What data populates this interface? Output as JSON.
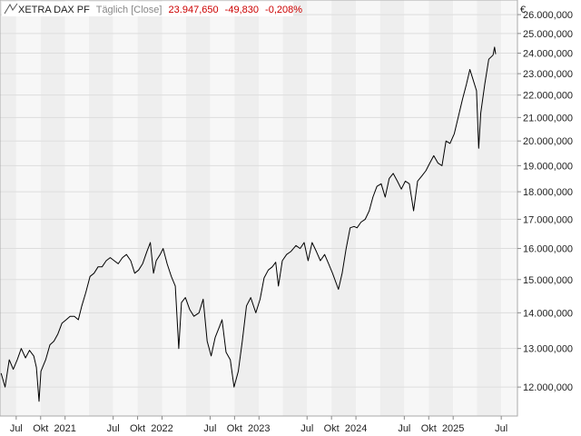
{
  "header": {
    "instrument": "XETRA DAX PF",
    "interval": "Täglich [Close]",
    "last": "23.947,650",
    "change": "-49,830",
    "change_pct": "-0,208%"
  },
  "colors": {
    "line": "#000000",
    "negative": "#cc0000",
    "muted": "#888888",
    "band_light": "#f7f7f7",
    "band_dark": "#eeeeee",
    "grid": "#dddddd"
  },
  "chart_data": {
    "type": "line",
    "title": "XETRA DAX PF",
    "currency_label": "€",
    "y_log_scale": true,
    "ylim": [
      11300,
      26800
    ],
    "y_ticks": [
      12000,
      13000,
      14000,
      15000,
      16000,
      17000,
      18000,
      19000,
      20000,
      21000,
      22000,
      23000,
      24000,
      25000,
      26000
    ],
    "y_tick_labels": [
      "12.000,000",
      "13.000,000",
      "14.000,000",
      "15.000,000",
      "16.000,000",
      "17.000,000",
      "18.000,000",
      "19.000,000",
      "20.000,000",
      "21.000,000",
      "22.000,000",
      "23.000,000",
      "24.000,000",
      "25.000,000",
      "26.000,000"
    ],
    "x_range": [
      "2020-05-01",
      "2025-08-31"
    ],
    "x_ticks": [
      {
        "date": "2020-07-01",
        "label": "Jul"
      },
      {
        "date": "2020-10-01",
        "label": "Okt"
      },
      {
        "date": "2021-01-01",
        "label": "2021"
      },
      {
        "date": "2021-07-01",
        "label": "Jul"
      },
      {
        "date": "2021-10-01",
        "label": "Okt"
      },
      {
        "date": "2022-01-01",
        "label": "2022"
      },
      {
        "date": "2022-07-01",
        "label": "Jul"
      },
      {
        "date": "2022-10-01",
        "label": "Okt"
      },
      {
        "date": "2023-01-01",
        "label": "2023"
      },
      {
        "date": "2023-07-01",
        "label": "Jul"
      },
      {
        "date": "2023-10-01",
        "label": "Okt"
      },
      {
        "date": "2024-01-01",
        "label": "2024"
      },
      {
        "date": "2024-07-01",
        "label": "Jul"
      },
      {
        "date": "2024-10-01",
        "label": "Okt"
      },
      {
        "date": "2025-01-01",
        "label": "2025"
      },
      {
        "date": "2025-07-01",
        "label": "Jul"
      }
    ],
    "series": [
      {
        "name": "XETRA DAX PF",
        "points": [
          [
            "2020-05-05",
            12350
          ],
          [
            "2020-05-20",
            12000
          ],
          [
            "2020-06-05",
            12700
          ],
          [
            "2020-06-20",
            12450
          ],
          [
            "2020-07-05",
            12700
          ],
          [
            "2020-07-20",
            13000
          ],
          [
            "2020-08-05",
            12750
          ],
          [
            "2020-08-20",
            12950
          ],
          [
            "2020-09-05",
            12800
          ],
          [
            "2020-09-15",
            12500
          ],
          [
            "2020-09-25",
            11650
          ],
          [
            "2020-10-02",
            12400
          ],
          [
            "2020-10-20",
            12700
          ],
          [
            "2020-11-05",
            13100
          ],
          [
            "2020-11-20",
            13200
          ],
          [
            "2020-12-05",
            13400
          ],
          [
            "2020-12-20",
            13700
          ],
          [
            "2021-01-05",
            13800
          ],
          [
            "2021-01-20",
            13900
          ],
          [
            "2021-02-05",
            13900
          ],
          [
            "2021-02-20",
            13800
          ],
          [
            "2021-03-05",
            14200
          ],
          [
            "2021-03-20",
            14600
          ],
          [
            "2021-04-05",
            15100
          ],
          [
            "2021-04-20",
            15200
          ],
          [
            "2021-05-05",
            15400
          ],
          [
            "2021-05-20",
            15400
          ],
          [
            "2021-06-05",
            15600
          ],
          [
            "2021-06-20",
            15700
          ],
          [
            "2021-07-05",
            15600
          ],
          [
            "2021-07-20",
            15500
          ],
          [
            "2021-08-05",
            15700
          ],
          [
            "2021-08-20",
            15800
          ],
          [
            "2021-09-05",
            15600
          ],
          [
            "2021-09-20",
            15200
          ],
          [
            "2021-10-05",
            15300
          ],
          [
            "2021-10-20",
            15500
          ],
          [
            "2021-11-05",
            15900
          ],
          [
            "2021-11-18",
            16200
          ],
          [
            "2021-11-30",
            15200
          ],
          [
            "2021-12-10",
            15600
          ],
          [
            "2021-12-25",
            15800
          ],
          [
            "2022-01-05",
            16000
          ],
          [
            "2022-01-20",
            15500
          ],
          [
            "2022-02-05",
            15100
          ],
          [
            "2022-02-20",
            14800
          ],
          [
            "2022-03-05",
            13000
          ],
          [
            "2022-03-15",
            14300
          ],
          [
            "2022-03-30",
            14450
          ],
          [
            "2022-04-15",
            14100
          ],
          [
            "2022-05-01",
            13900
          ],
          [
            "2022-05-20",
            14000
          ],
          [
            "2022-06-05",
            14400
          ],
          [
            "2022-06-20",
            13200
          ],
          [
            "2022-07-05",
            12800
          ],
          [
            "2022-07-20",
            13300
          ],
          [
            "2022-08-05",
            13600
          ],
          [
            "2022-08-15",
            13800
          ],
          [
            "2022-08-30",
            12900
          ],
          [
            "2022-09-15",
            12700
          ],
          [
            "2022-09-29",
            12000
          ],
          [
            "2022-10-15",
            12400
          ],
          [
            "2022-10-30",
            13200
          ],
          [
            "2022-11-15",
            14200
          ],
          [
            "2022-12-01",
            14450
          ],
          [
            "2022-12-20",
            14000
          ],
          [
            "2023-01-05",
            14400
          ],
          [
            "2023-01-20",
            15050
          ],
          [
            "2023-02-05",
            15300
          ],
          [
            "2023-02-20",
            15400
          ],
          [
            "2023-03-05",
            15550
          ],
          [
            "2023-03-15",
            14800
          ],
          [
            "2023-03-30",
            15600
          ],
          [
            "2023-04-15",
            15800
          ],
          [
            "2023-05-01",
            15900
          ],
          [
            "2023-05-20",
            16100
          ],
          [
            "2023-06-05",
            16000
          ],
          [
            "2023-06-20",
            16200
          ],
          [
            "2023-07-05",
            15600
          ],
          [
            "2023-07-20",
            16200
          ],
          [
            "2023-08-05",
            15900
          ],
          [
            "2023-08-20",
            15600
          ],
          [
            "2023-09-05",
            15800
          ],
          [
            "2023-09-20",
            15500
          ],
          [
            "2023-10-05",
            15200
          ],
          [
            "2023-10-27",
            14700
          ],
          [
            "2023-11-10",
            15200
          ],
          [
            "2023-11-25",
            16000
          ],
          [
            "2023-12-10",
            16700
          ],
          [
            "2023-12-25",
            16750
          ],
          [
            "2024-01-05",
            16700
          ],
          [
            "2024-01-20",
            16900
          ],
          [
            "2024-02-05",
            17000
          ],
          [
            "2024-02-20",
            17300
          ],
          [
            "2024-03-05",
            17800
          ],
          [
            "2024-03-20",
            18200
          ],
          [
            "2024-04-05",
            18300
          ],
          [
            "2024-04-20",
            17800
          ],
          [
            "2024-05-05",
            18500
          ],
          [
            "2024-05-20",
            18700
          ],
          [
            "2024-06-05",
            18400
          ],
          [
            "2024-06-20",
            18100
          ],
          [
            "2024-07-05",
            18400
          ],
          [
            "2024-07-20",
            18300
          ],
          [
            "2024-08-05",
            17300
          ],
          [
            "2024-08-20",
            18400
          ],
          [
            "2024-09-05",
            18600
          ],
          [
            "2024-09-20",
            18800
          ],
          [
            "2024-10-05",
            19100
          ],
          [
            "2024-10-20",
            19400
          ],
          [
            "2024-11-05",
            19100
          ],
          [
            "2024-11-20",
            19000
          ],
          [
            "2024-12-05",
            20000
          ],
          [
            "2024-12-20",
            19900
          ],
          [
            "2025-01-05",
            20300
          ],
          [
            "2025-01-20",
            21000
          ],
          [
            "2025-02-05",
            21800
          ],
          [
            "2025-02-20",
            22500
          ],
          [
            "2025-03-05",
            23200
          ],
          [
            "2025-03-15",
            22800
          ],
          [
            "2025-03-30",
            22200
          ],
          [
            "2025-04-07",
            19700
          ],
          [
            "2025-04-15",
            21200
          ],
          [
            "2025-04-30",
            22500
          ],
          [
            "2025-05-15",
            23700
          ],
          [
            "2025-05-31",
            23900
          ],
          [
            "2025-06-06",
            24300
          ],
          [
            "2025-06-10",
            23950
          ]
        ]
      }
    ]
  }
}
